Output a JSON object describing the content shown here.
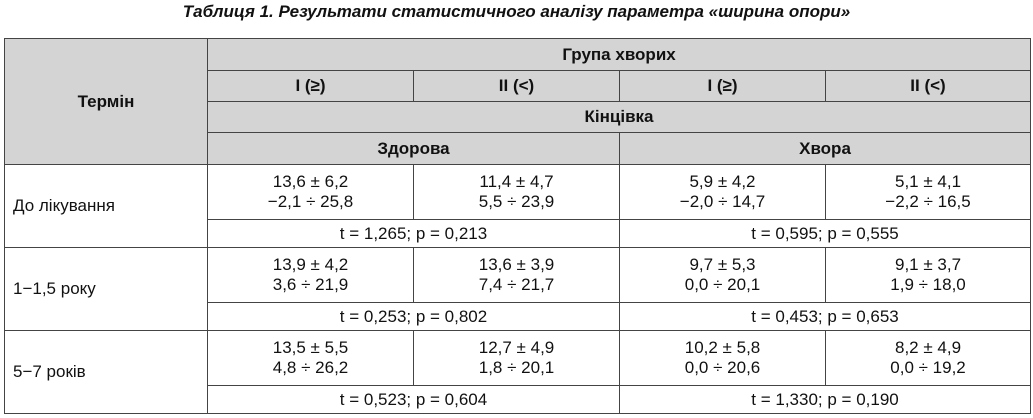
{
  "title": "Таблиця 1. Результати статистичного аналізу параметра «ширина опори»",
  "header": {
    "term": "Термін",
    "group": "Група хворих",
    "subgroups": [
      "I (≥)",
      "II (<)",
      "I (≥)",
      "II (<)"
    ],
    "limb": "Кінцівка",
    "limbs": [
      "Здорова",
      "Хвора"
    ]
  },
  "rows": [
    {
      "term": "До лікування",
      "cells": [
        [
          "13,6 ± 6,2",
          "−2,1 ÷ 25,8"
        ],
        [
          "11,4 ± 4,7",
          "5,5 ÷ 23,9"
        ],
        [
          "5,9 ± 4,2",
          "−2,0 ÷ 14,7"
        ],
        [
          "5,1 ± 4,1",
          "−2,2 ÷ 16,5"
        ]
      ],
      "tests": [
        "t = 1,265; p = 0,213",
        "t = 0,595; p = 0,555"
      ]
    },
    {
      "term": "1−1,5 року",
      "cells": [
        [
          "13,9 ± 4,2",
          "3,6 ÷ 21,9"
        ],
        [
          "13,6 ± 3,9",
          "7,4 ÷ 21,7"
        ],
        [
          "9,7 ± 5,3",
          "0,0 ÷ 20,1"
        ],
        [
          "9,1 ± 3,7",
          "1,9 ÷ 18,0"
        ]
      ],
      "tests": [
        "t = 0,253; p = 0,802",
        "t = 0,453; p = 0,653"
      ]
    },
    {
      "term": "5−7 років",
      "cells": [
        [
          "13,5 ± 5,5",
          "4,8 ÷ 26,2"
        ],
        [
          "12,7 ± 4,9",
          "1,8 ÷ 20,1"
        ],
        [
          "10,2 ± 5,8",
          "0,0 ÷ 20,6"
        ],
        [
          "8,2 ± 4,9",
          "0,0 ÷ 19,2"
        ]
      ],
      "tests": [
        "t = 0,523; p = 0,604",
        "t = 1,330; p = 0,190"
      ]
    }
  ]
}
